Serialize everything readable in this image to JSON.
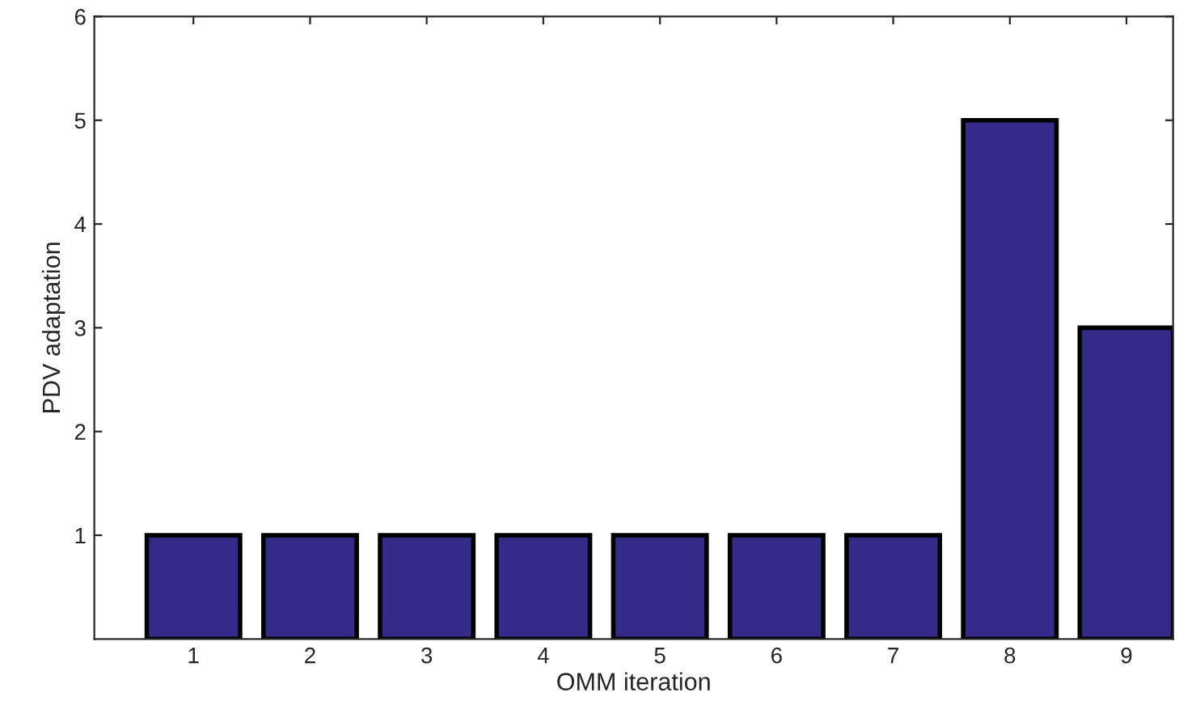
{
  "chart_data": {
    "type": "bar",
    "xlabel": "OMM iteration",
    "ylabel": "PDV adaptation",
    "categories": [
      "1",
      "2",
      "3",
      "4",
      "5",
      "6",
      "7",
      "8",
      "9"
    ],
    "values": [
      1,
      1,
      1,
      1,
      1,
      1,
      1,
      5,
      3
    ],
    "color": "#352a87",
    "ylim": [
      0,
      6
    ],
    "yticks": [
      1,
      2,
      3,
      4,
      5,
      6
    ],
    "grid": false,
    "legend": false
  }
}
